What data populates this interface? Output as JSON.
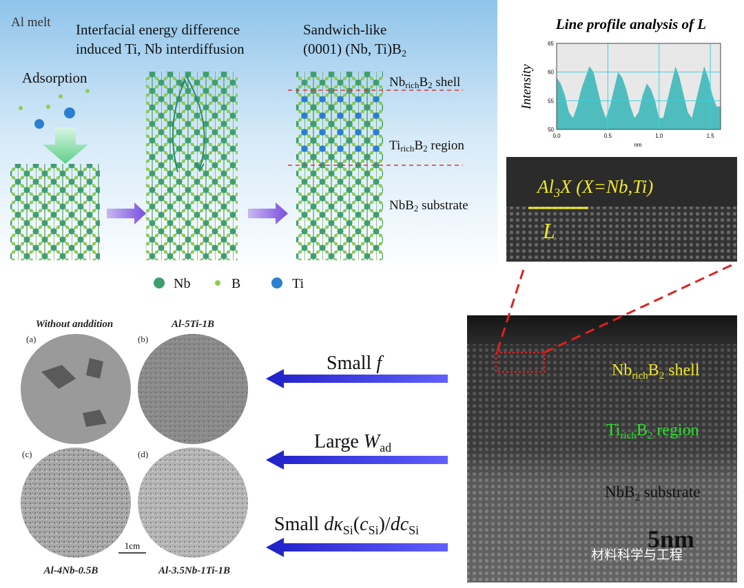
{
  "schematic": {
    "al_melt": "Al melt",
    "adsorption": "Adsorption",
    "step2_title": [
      "Interfacial energy difference",
      "induced Ti, Nb interdiffusion"
    ],
    "step3_title": [
      "Sandwich-like",
      "(0001) (Nb, Ti)B",
      "2"
    ],
    "shell_label": [
      "Nb",
      "rich",
      "B",
      "2",
      " shell"
    ],
    "region_label": [
      "Ti",
      "rich",
      "B",
      "2",
      " region"
    ],
    "substrate_label": [
      "NbB",
      "2",
      " substrate"
    ],
    "legend": [
      "Nb",
      "B",
      "Ti"
    ]
  },
  "line_profile": {
    "type": "line",
    "title": "Line profile analysis of L",
    "y_label": "Intensity",
    "x_label": "nm",
    "color": "#4fbdbd",
    "x": [
      0,
      0.04,
      0.08,
      0.12,
      0.16,
      0.2,
      0.24,
      0.28,
      0.32,
      0.36,
      0.4,
      0.44,
      0.48,
      0.52,
      0.56,
      0.6,
      0.64,
      0.68,
      0.72,
      0.76,
      0.8,
      0.84,
      0.88,
      0.92,
      0.96,
      1.0,
      1.04,
      1.08,
      1.12,
      1.16,
      1.2,
      1.24,
      1.28,
      1.32,
      1.36,
      1.4,
      1.44,
      1.48,
      1.52,
      1.56,
      1.6
    ],
    "values": [
      59,
      58,
      56,
      53,
      52,
      54,
      57,
      59,
      61,
      60,
      57,
      54,
      52,
      54,
      57,
      60,
      59,
      57,
      54,
      52,
      53,
      56,
      58,
      57,
      55,
      52,
      52,
      55,
      58,
      61,
      59,
      56,
      53,
      52,
      55,
      58,
      61,
      59,
      56,
      54,
      54
    ],
    "xlim": [
      0,
      1.6
    ],
    "ylim": [
      50,
      65
    ],
    "xticks": [
      {
        "value": 0,
        "label": "0.0"
      },
      0.5,
      {
        "value": 1,
        "label": "1.0"
      },
      1.5
    ],
    "yticks": [
      50,
      55,
      60,
      65
    ],
    "grid": true
  },
  "stem_zoom": {
    "label": [
      "Al",
      "3",
      "X (X=Nb,Ti)"
    ],
    "marker": "L"
  },
  "stem_main": {
    "shell_label": [
      "Nb",
      "rich",
      "B",
      "2",
      " shell"
    ],
    "region_label": [
      "Ti",
      "rich",
      "B",
      "2",
      " region"
    ],
    "substrate_label": [
      "NbB",
      "2",
      " substrate"
    ],
    "scale": "5nm"
  },
  "micrographs": {
    "titles": [
      "Without anddition",
      "Al-5Ti-1B",
      "Al-4Nb-0.5B",
      "Al-3.5Nb-1Ti-1B"
    ],
    "letters": [
      "(a)",
      "(b)",
      "(c)",
      "(d)"
    ],
    "scale": "1cm"
  },
  "arrows": [
    [
      "Small ",
      "f"
    ],
    [
      "Large ",
      "W",
      "ad"
    ],
    [
      "Small ",
      "dκ",
      "Si",
      "(",
      "c",
      "Si",
      ")/",
      "dc",
      "Si"
    ]
  ],
  "watermark": "材料科学与工程"
}
